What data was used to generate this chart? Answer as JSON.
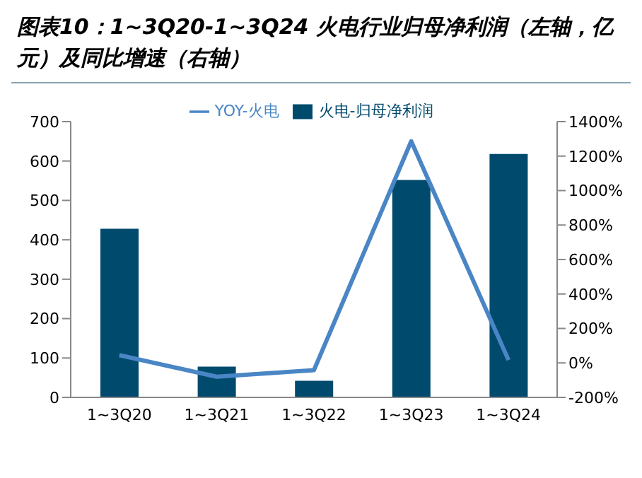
{
  "chart_data": {
    "type": "bar",
    "title": "图表10：1~3Q20-1~3Q24 火电行业归母净利润（左轴，亿元）及同比增速（右轴）",
    "categories": [
      "1~3Q20",
      "1~3Q21",
      "1~3Q22",
      "1~3Q23",
      "1~3Q24"
    ],
    "series": [
      {
        "name": "火电-归母净利润",
        "color": "#004a6e",
        "values": [
          428,
          78,
          42,
          552,
          618
        ]
      },
      {
        "name": "YOY-火电",
        "type": "line",
        "axis": "y2",
        "color": "#4a86c5",
        "values": [
          45,
          -80,
          -42,
          1286,
          17
        ]
      }
    ],
    "ylim": [
      0,
      700
    ],
    "yticks": [
      0,
      100,
      200,
      300,
      400,
      500,
      600,
      700
    ],
    "y2lim": [
      -200,
      1400
    ],
    "y2ticks": [
      {
        "value": -200,
        "label": "-200%"
      },
      {
        "value": 0,
        "label": "0%"
      },
      {
        "value": 200,
        "label": "200%"
      },
      {
        "value": 400,
        "label": "400%"
      },
      {
        "value": 600,
        "label": "600%"
      },
      {
        "value": 800,
        "label": "800%"
      },
      {
        "value": 1000,
        "label": "1000%"
      },
      {
        "value": 1200,
        "label": "1200%"
      },
      {
        "value": 1400,
        "label": "1400%"
      }
    ],
    "grid": false,
    "legend": "top",
    "marker": "none",
    "line_style": "solid"
  }
}
